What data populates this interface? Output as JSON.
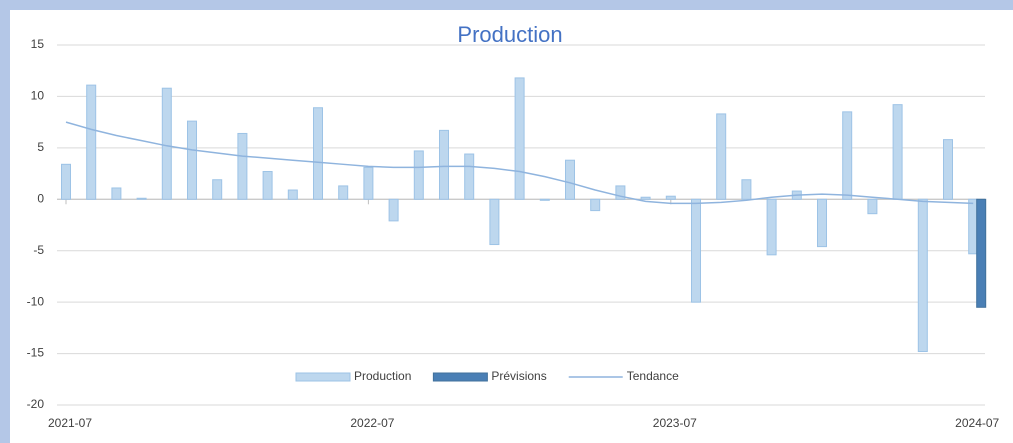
{
  "chart_data": {
    "type": "bar",
    "title": "Production",
    "categories": [
      "2021-07",
      null,
      null,
      null,
      null,
      null,
      null,
      null,
      null,
      null,
      null,
      null,
      "2022-07",
      null,
      null,
      null,
      null,
      null,
      null,
      null,
      null,
      null,
      null,
      null,
      "2023-07",
      null,
      null,
      null,
      null,
      null,
      null,
      null,
      null,
      null,
      null,
      null,
      "2024-07"
    ],
    "series": [
      {
        "name": "Production",
        "type": "bar",
        "color": "#bdd7ee",
        "stroke": "#9dc3e6",
        "values": [
          3.4,
          11.1,
          1.1,
          0.1,
          10.8,
          7.6,
          1.9,
          6.4,
          2.7,
          0.9,
          8.9,
          1.3,
          3.1,
          -2.1,
          4.7,
          6.7,
          4.4,
          -4.4,
          11.8,
          -0.1,
          3.8,
          -1.1,
          1.3,
          0.2,
          0.3,
          -10,
          8.3,
          1.9,
          -5.4,
          0.8,
          -4.6,
          8.5,
          -1.4,
          9.2,
          -14.8,
          5.8,
          -5.3
        ]
      },
      {
        "name": "Prévisions",
        "type": "bar",
        "color": "#4a7fb5",
        "stroke": "#41719c",
        "values": [
          null,
          null,
          null,
          null,
          null,
          null,
          null,
          null,
          null,
          null,
          null,
          null,
          null,
          null,
          null,
          null,
          null,
          null,
          null,
          null,
          null,
          null,
          null,
          null,
          null,
          null,
          null,
          null,
          null,
          null,
          null,
          null,
          null,
          null,
          null,
          null,
          -10.5
        ]
      },
      {
        "name": "Tendance",
        "type": "line",
        "color": "#8fb4de",
        "values": [
          7.5,
          6.8,
          6.2,
          5.7,
          5.2,
          4.8,
          4.5,
          4.2,
          4.0,
          3.8,
          3.6,
          3.4,
          3.2,
          3.1,
          3.1,
          3.2,
          3.2,
          3.0,
          2.7,
          2.2,
          1.6,
          0.9,
          0.3,
          -0.2,
          -0.4,
          -0.4,
          -0.3,
          -0.1,
          0.2,
          0.4,
          0.5,
          0.4,
          0.2,
          0.0,
          -0.2,
          -0.3,
          -0.4
        ]
      }
    ],
    "ylim": [
      -20,
      15
    ],
    "yticks": [
      -20,
      -15,
      -10,
      -5,
      0,
      5,
      10,
      15
    ],
    "grid": true,
    "legend": "bottom"
  }
}
